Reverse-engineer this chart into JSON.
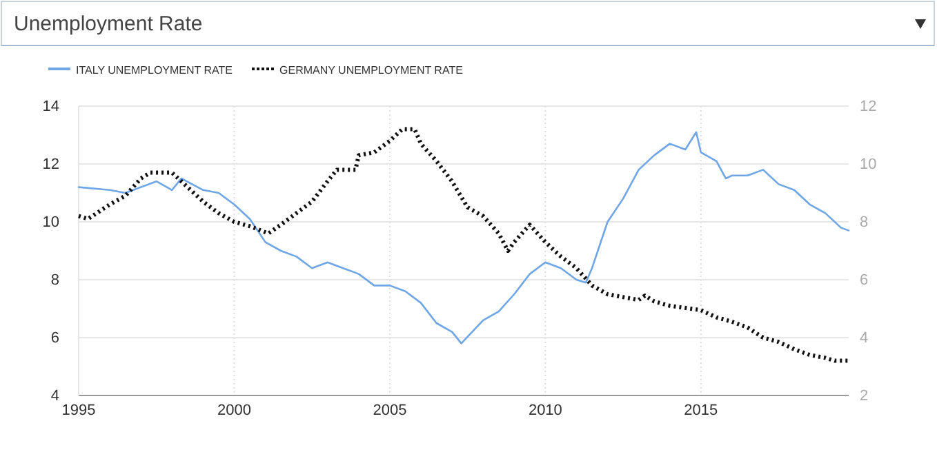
{
  "chart_data": {
    "type": "line",
    "title": "Unemployment Rate",
    "xlim": [
      1995,
      2019.75
    ],
    "xticks": [
      1995,
      2000,
      2005,
      2010,
      2015
    ],
    "ylim": [
      4,
      14
    ],
    "yticks": [
      4,
      6,
      8,
      10,
      12,
      14
    ],
    "y2lim": [
      2,
      12
    ],
    "y2ticks": [
      2,
      4,
      6,
      8,
      10,
      12
    ],
    "grid": true,
    "legend": "top left",
    "series": [
      {
        "name": "ITALY UNEMPLOYMENT RATE",
        "color": "#6ea6e6",
        "line_style": "solid",
        "x": [
          1995,
          1996,
          1996.5,
          1997.5,
          1998,
          1998.3,
          1999,
          1999.5,
          2000,
          2000.5,
          2001,
          2001.5,
          2002,
          2002.5,
          2003,
          2003.5,
          2004,
          2004.5,
          2005,
          2005.5,
          2006,
          2006.5,
          2007,
          2007.3,
          2008,
          2008.5,
          2009,
          2009.5,
          2010,
          2010.5,
          2011,
          2011.3,
          2011.5,
          2012,
          2012.5,
          2013,
          2013.5,
          2014,
          2014.5,
          2014.85,
          2015,
          2015.5,
          2015.8,
          2016,
          2016.5,
          2017,
          2017.5,
          2018,
          2018.5,
          2019,
          2019.5,
          2019.75
        ],
        "values": [
          11.2,
          11.1,
          11.0,
          11.4,
          11.1,
          11.5,
          11.1,
          11.0,
          10.6,
          10.1,
          9.3,
          9.0,
          8.8,
          8.4,
          8.6,
          8.4,
          8.2,
          7.8,
          7.8,
          7.6,
          7.2,
          6.5,
          6.2,
          5.8,
          6.6,
          6.9,
          7.5,
          8.2,
          8.6,
          8.4,
          8.0,
          7.9,
          8.4,
          10.0,
          10.8,
          11.8,
          12.3,
          12.7,
          12.5,
          13.1,
          12.4,
          12.1,
          11.5,
          11.6,
          11.6,
          11.8,
          11.3,
          11.1,
          10.6,
          10.3,
          9.8,
          9.7
        ]
      },
      {
        "name": "GERMANY UNEMPLOYMENT RATE",
        "color": "#111111",
        "axis": "y2",
        "line_style": "dotted",
        "x": [
          1995,
          1995.3,
          1996,
          1996.5,
          1997,
          1997.3,
          1998,
          1998.5,
          1999,
          1999.5,
          2000,
          2000.5,
          2001.1,
          2001.5,
          2002,
          2002.5,
          2003,
          2003.3,
          2003.9,
          2004,
          2004.5,
          2005,
          2005.4,
          2005.8,
          2006,
          2006.5,
          2007,
          2007.5,
          2008,
          2008.5,
          2008.8,
          2009,
          2009.5,
          2010,
          2010.5,
          2011,
          2011.5,
          2012,
          2012.5,
          2013,
          2013.2,
          2013.5,
          2014,
          2015,
          2015.5,
          2016,
          2016.5,
          2017,
          2017.5,
          2018,
          2018.5,
          2019,
          2019.3,
          2019.75
        ],
        "values": [
          8.2,
          8.1,
          8.6,
          8.9,
          9.5,
          9.7,
          9.7,
          9.2,
          8.7,
          8.3,
          8.0,
          7.85,
          7.6,
          7.9,
          8.3,
          8.7,
          9.4,
          9.8,
          9.8,
          10.3,
          10.4,
          10.8,
          11.2,
          11.2,
          10.7,
          10.1,
          9.4,
          8.5,
          8.2,
          7.6,
          7.0,
          7.3,
          7.9,
          7.3,
          6.8,
          6.4,
          5.8,
          5.5,
          5.4,
          5.3,
          5.45,
          5.25,
          5.1,
          4.95,
          4.7,
          4.55,
          4.35,
          4.0,
          3.85,
          3.6,
          3.4,
          3.3,
          3.2,
          3.2
        ]
      }
    ]
  }
}
